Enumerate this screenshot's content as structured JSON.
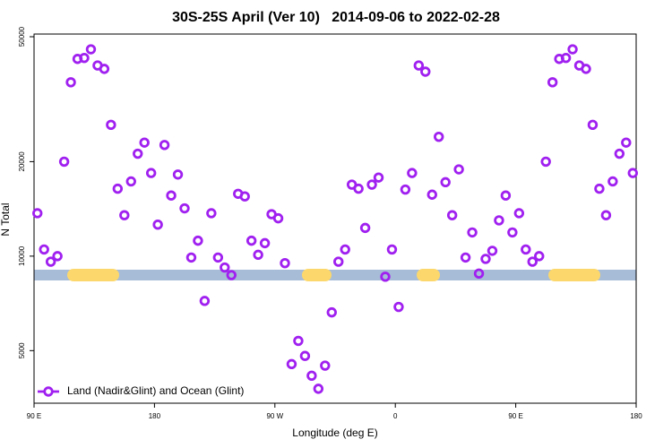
{
  "chart_data": {
    "type": "scatter",
    "title": "30S-25S April (Ver 10)   2014-09-06 to 2022-02-28",
    "x_label": "Longitude (deg E)",
    "y_label": "N Total",
    "xlim": [
      90,
      540
    ],
    "xticks": [
      {
        "value": 90,
        "label": "90 E"
      },
      180,
      {
        "value": 270,
        "label": "90 W"
      },
      {
        "value": 360,
        "label": "0"
      },
      {
        "value": 450,
        "label": "90 E"
      },
      {
        "value": 540,
        "label": "180"
      }
    ],
    "ylim": [
      3400,
      51000
    ],
    "ylog": true,
    "yticks": [
      5000,
      10000,
      20000,
      50000
    ],
    "legend": "bottom-left",
    "series": [
      {
        "name": "Land (Nadir&Glint) and Ocean (Glint)",
        "color": "#a020f0",
        "x": [
          92.5,
          97.5,
          102.5,
          107.5,
          112.5,
          117.5,
          122.5,
          127.5,
          132.5,
          137.5,
          142.5,
          147.5,
          152.5,
          157.5,
          162.5,
          167.5,
          172.5,
          177.5,
          182.5,
          187.5,
          192.5,
          197.5,
          202.5,
          207.5,
          212.5,
          217.5,
          222.5,
          227.5,
          232.5,
          237.5,
          242.5,
          247.5,
          252.5,
          257.5,
          262.5,
          267.5,
          272.5,
          277.5,
          282.5,
          287.5,
          292.5,
          297.5,
          302.5,
          307.5,
          312.5,
          317.5,
          322.5,
          327.5,
          332.5,
          337.5,
          342.5,
          347.5,
          352.5,
          357.5,
          362.5,
          367.5,
          372.5,
          377.5,
          382.5,
          387.5,
          392.5,
          397.5,
          402.5,
          407.5,
          412.5,
          417.5,
          422.5,
          427.5,
          432.5,
          437.5,
          442.5,
          447.5,
          452.5,
          457.5,
          462.5,
          467.5,
          472.5,
          477.5,
          482.5,
          487.5,
          492.5,
          497.5,
          502.5,
          507.5,
          512.5,
          517.5,
          522.5,
          527.5,
          532.5,
          537.5
        ],
        "values": [
          13700,
          10500,
          9600,
          10000,
          20000,
          35800,
          42500,
          42800,
          45600,
          40500,
          39500,
          26200,
          16400,
          13500,
          17300,
          21200,
          23000,
          18400,
          12600,
          22600,
          15600,
          18200,
          14200,
          9900,
          11200,
          7200,
          13700,
          9900,
          9200,
          8700,
          15800,
          15500,
          11200,
          10100,
          11000,
          13600,
          13200,
          9500,
          4530,
          5370,
          4810,
          4160,
          3780,
          4480,
          6620,
          9600,
          10500,
          16900,
          16400,
          12300,
          16900,
          17800,
          8600,
          10500,
          6890,
          16300,
          18400,
          40500,
          38700,
          15700,
          24000,
          17200,
          13500,
          18900,
          9900,
          11900,
          8800,
          9800,
          10400,
          13000,
          15600,
          11900,
          13700,
          10500,
          9600,
          10000,
          20000,
          35800,
          42500,
          42800,
          45600,
          40500,
          39500,
          26200,
          16400,
          13500,
          17300,
          21200,
          23000,
          18400
        ]
      }
    ]
  }
}
